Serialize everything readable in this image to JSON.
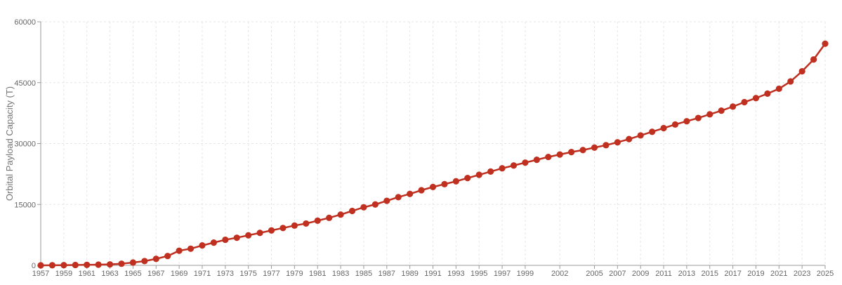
{
  "colors": {
    "series": "#c03020",
    "grid": "#e6e6e6",
    "axis": "#9a9a9a",
    "text": "#666666"
  },
  "chart_data": {
    "type": "line",
    "title": "",
    "xlabel": "",
    "ylabel": "Orbital Payload Capacity (T)",
    "grid": true,
    "xlim": [
      1957,
      2025
    ],
    "ylim": [
      0,
      60000
    ],
    "x_ticks": [
      1957,
      1959,
      1961,
      1963,
      1965,
      1967,
      1969,
      1971,
      1973,
      1975,
      1977,
      1979,
      1981,
      1983,
      1985,
      1987,
      1989,
      1991,
      1993,
      1995,
      1997,
      1999,
      2002,
      2005,
      2007,
      2009,
      2011,
      2013,
      2015,
      2017,
      2019,
      2021,
      2023,
      2025
    ],
    "y_ticks": [
      0,
      15000,
      30000,
      45000,
      60000
    ],
    "y_tick_labels": [
      "0",
      "15000",
      "30000",
      "45000",
      "60000"
    ],
    "series": [
      {
        "x": [
          1957,
          1958,
          1959,
          1960,
          1961,
          1962,
          1963,
          1964,
          1965,
          1966,
          1967,
          1968,
          1969,
          1970,
          1971,
          1972,
          1973,
          1974,
          1975,
          1976,
          1977,
          1978,
          1979,
          1980,
          1981,
          1982,
          1983,
          1984,
          1985,
          1986,
          1987,
          1988,
          1989,
          1990,
          1991,
          1992,
          1993,
          1994,
          1995,
          1996,
          1997,
          1998,
          1999,
          2000,
          2001,
          2002,
          2003,
          2004,
          2005,
          2006,
          2007,
          2008,
          2009,
          2010,
          2011,
          2012,
          2013,
          2014,
          2015,
          2016,
          2017,
          2018,
          2019,
          2020,
          2021,
          2022,
          2023,
          2024,
          2025
        ],
        "values": [
          0,
          20,
          50,
          80,
          120,
          170,
          230,
          400,
          700,
          1050,
          1600,
          2300,
          3600,
          4100,
          4900,
          5600,
          6300,
          6800,
          7400,
          8000,
          8600,
          9200,
          9800,
          10300,
          11000,
          11700,
          12500,
          13400,
          14300,
          15000,
          15900,
          16800,
          17600,
          18500,
          19300,
          20000,
          20700,
          21500,
          22300,
          23100,
          23900,
          24600,
          25300,
          26000,
          26700,
          27300,
          27900,
          28400,
          29000,
          29600,
          30300,
          31100,
          32000,
          32900,
          33800,
          34700,
          35500,
          36300,
          37200,
          38100,
          39100,
          40200,
          41200,
          42300,
          43500,
          45300,
          47800,
          50700,
          54600
        ]
      }
    ]
  }
}
